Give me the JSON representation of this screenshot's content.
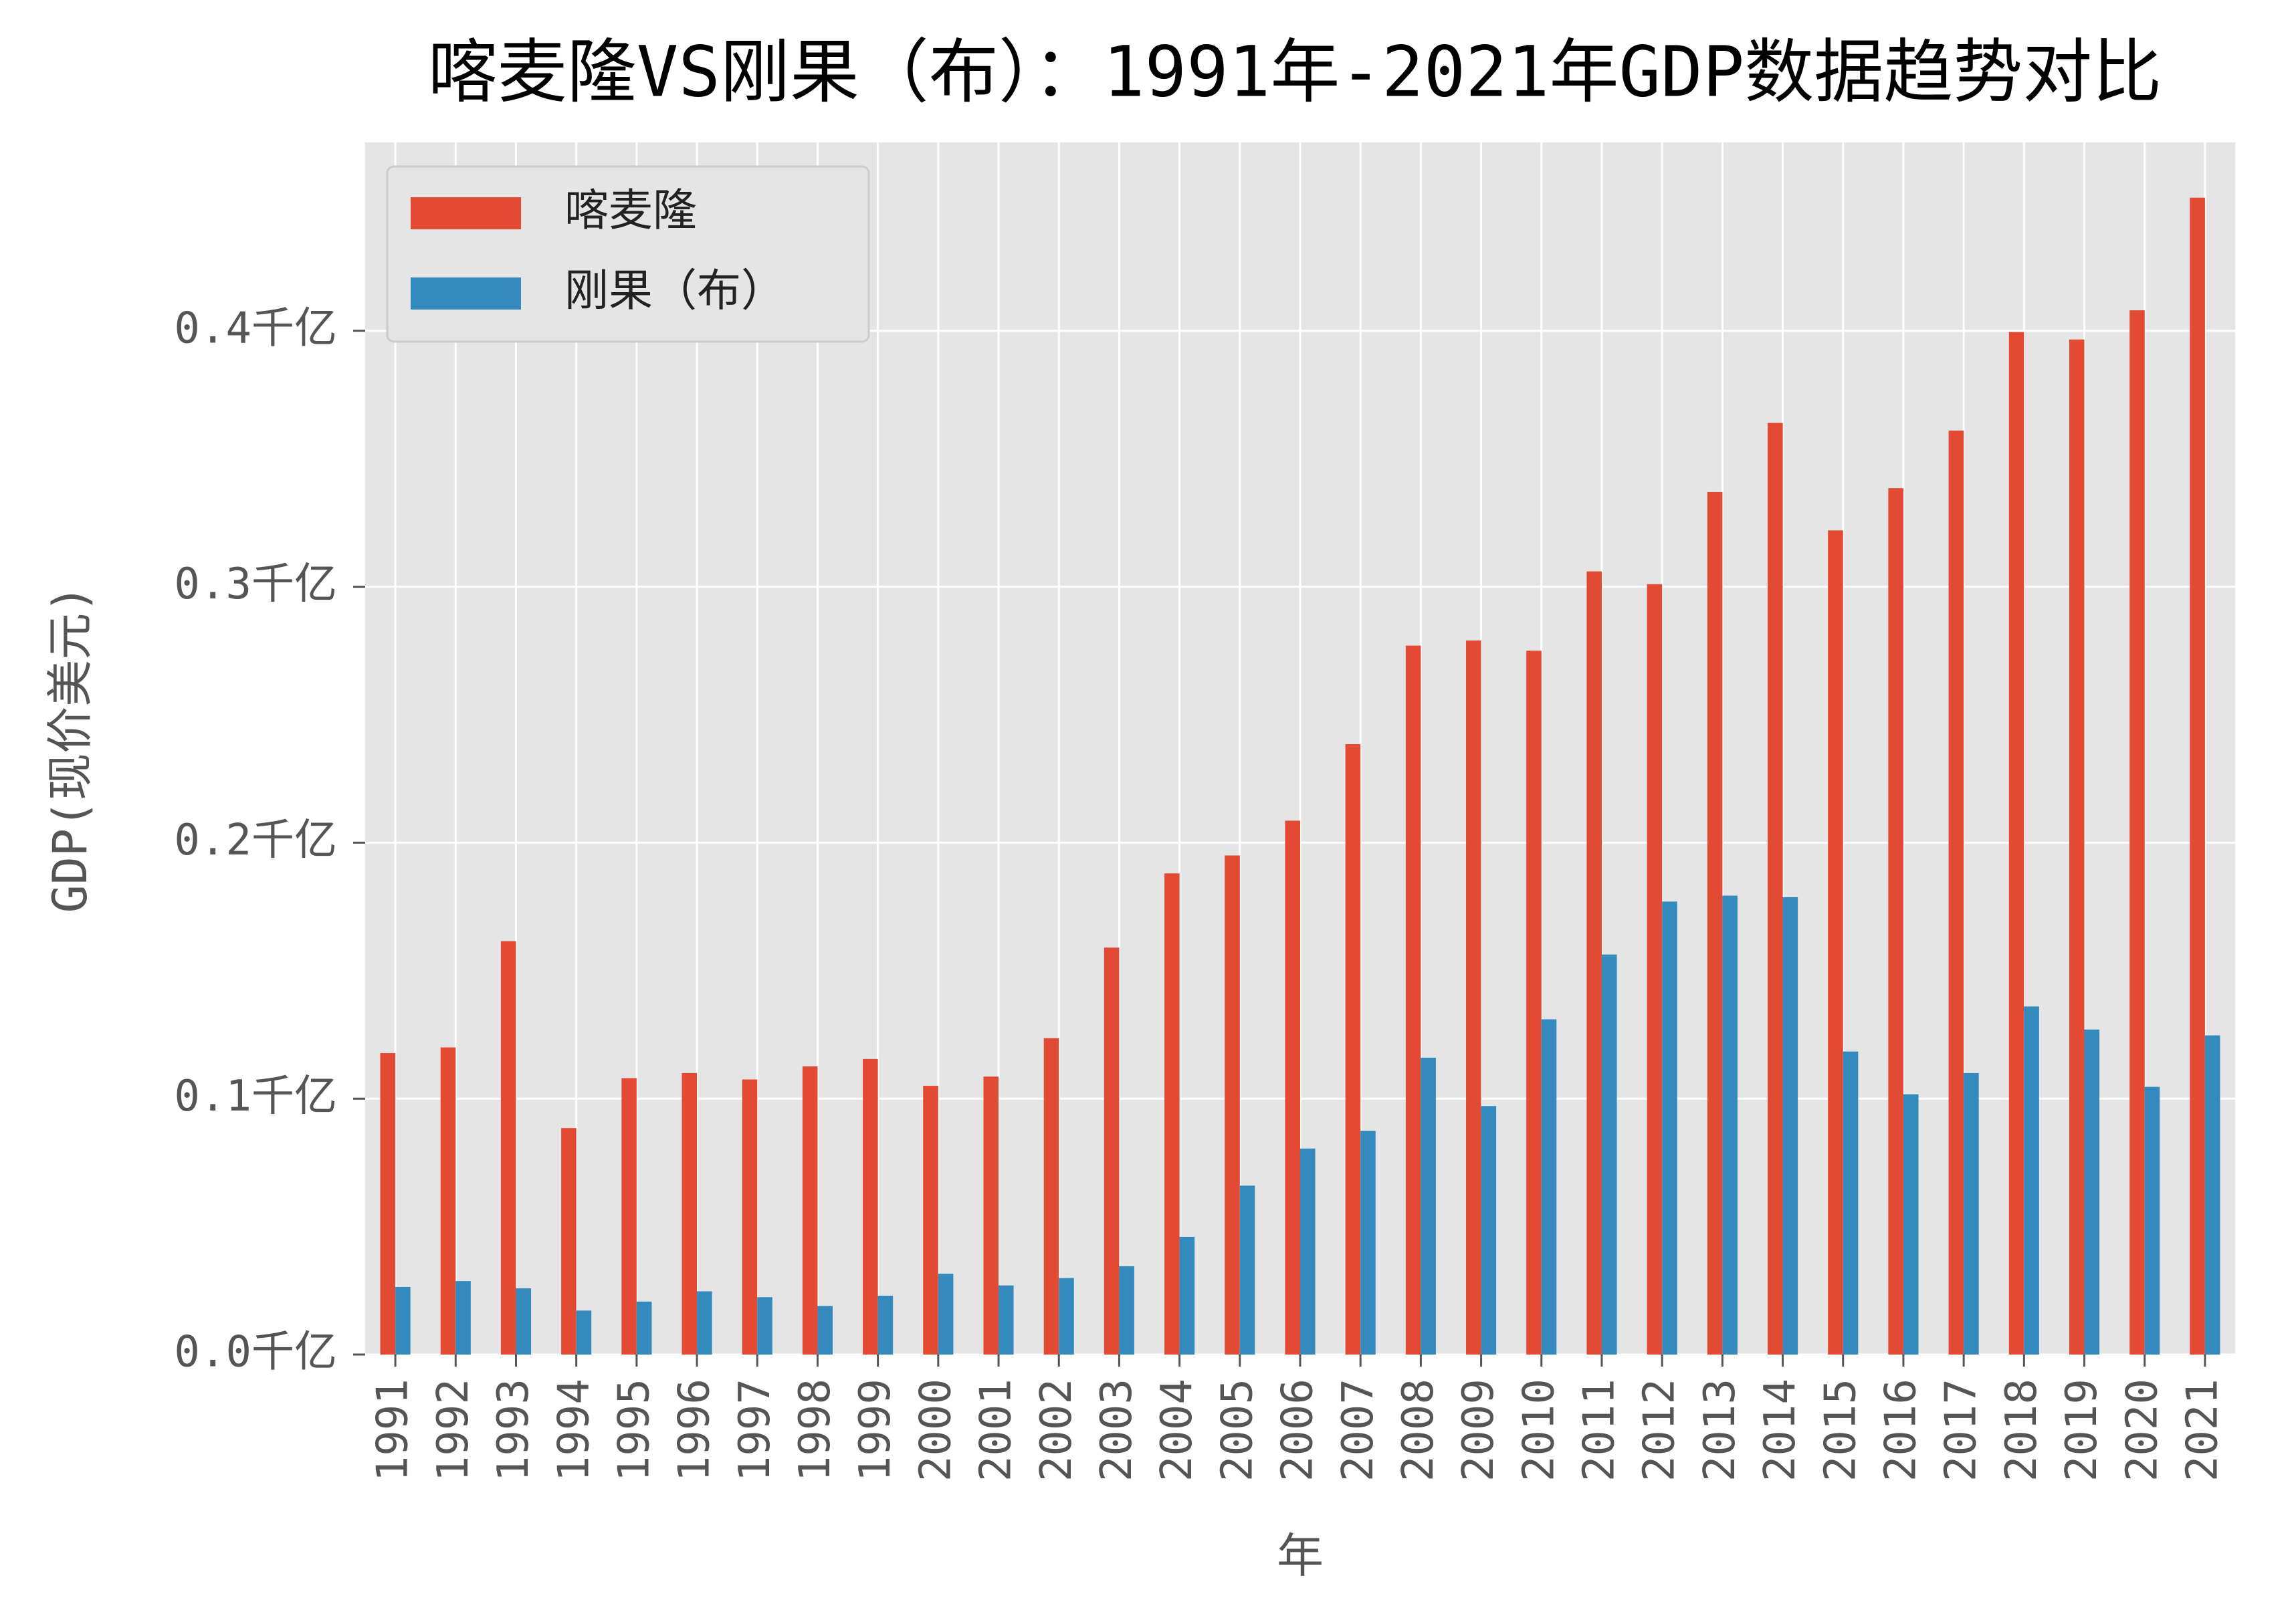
{
  "chart_data": {
    "type": "bar",
    "title": "喀麦隆VS刚果（布）：1991年-2021年GDP数据趋势对比",
    "x_label": "年",
    "y_label": "GDP(现价美元)",
    "categories": [
      "1991",
      "1992",
      "1993",
      "1994",
      "1995",
      "1996",
      "1997",
      "1998",
      "1999",
      "2000",
      "2001",
      "2002",
      "2003",
      "2004",
      "2005",
      "2006",
      "2007",
      "2008",
      "2009",
      "2010",
      "2011",
      "2012",
      "2013",
      "2014",
      "2015",
      "2016",
      "2017",
      "2018",
      "2019",
      "2020",
      "2021"
    ],
    "series": [
      {
        "name": "喀麦隆",
        "color": "#e24a33",
        "values": [
          0.1178,
          0.12,
          0.1615,
          0.0885,
          0.108,
          0.11,
          0.1075,
          0.1126,
          0.1155,
          0.105,
          0.1086,
          0.1236,
          0.159,
          0.188,
          0.195,
          0.2086,
          0.2385,
          0.277,
          0.279,
          0.275,
          0.306,
          0.301,
          0.337,
          0.364,
          0.322,
          0.3385,
          0.361,
          0.3995,
          0.3966,
          0.408,
          0.452
        ]
      },
      {
        "name": "刚果（布）",
        "color": "#348abd",
        "values": [
          0.0264,
          0.0287,
          0.0259,
          0.0172,
          0.0207,
          0.0247,
          0.0224,
          0.019,
          0.023,
          0.0316,
          0.027,
          0.0299,
          0.0345,
          0.046,
          0.066,
          0.0805,
          0.0874,
          0.116,
          0.0971,
          0.131,
          0.1563,
          0.177,
          0.1793,
          0.1787,
          0.1184,
          0.1017,
          0.11,
          0.136,
          0.127,
          0.1046,
          0.1247
        ]
      }
    ],
    "ylim": [
      0,
      0.4736
    ],
    "yticks": [
      {
        "value": 0,
        "label": "0.0千亿"
      },
      {
        "value": 0.1,
        "label": "0.1千亿"
      },
      {
        "value": 0.2,
        "label": "0.2千亿"
      },
      {
        "value": 0.3,
        "label": "0.3千亿"
      },
      {
        "value": 0.4,
        "label": "0.4千亿"
      }
    ],
    "grid": true,
    "legend_position": "upper left"
  }
}
